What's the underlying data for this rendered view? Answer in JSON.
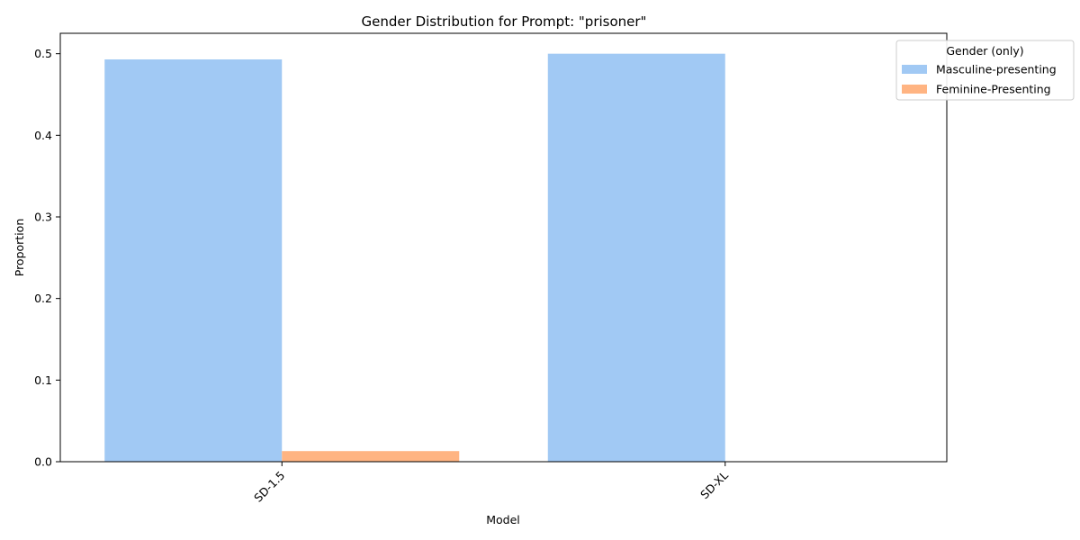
{
  "chart_data": {
    "type": "bar",
    "title": "Gender Distribution for Prompt: \"prisoner\"",
    "xlabel": "Model",
    "ylabel": "Proportion",
    "categories": [
      "SD-1.5",
      "SD-XL"
    ],
    "ylim": [
      0,
      0.525
    ],
    "yticks": [
      0.0,
      0.1,
      0.2,
      0.3,
      0.4,
      0.5
    ],
    "ytick_labels": [
      "0.0",
      "0.1",
      "0.2",
      "0.3",
      "0.4",
      "0.5"
    ],
    "xtick_rotation": 45,
    "grid": false,
    "legend": {
      "title": "Gender (only)",
      "placement": "top-right, outside plot"
    },
    "series": [
      {
        "name": "Masculine-presenting",
        "color": "#a1c9f4",
        "values": [
          0.493,
          0.5
        ]
      },
      {
        "name": "Feminine-Presenting",
        "color": "#ffb482",
        "values": [
          0.013,
          0.0
        ]
      }
    ]
  }
}
